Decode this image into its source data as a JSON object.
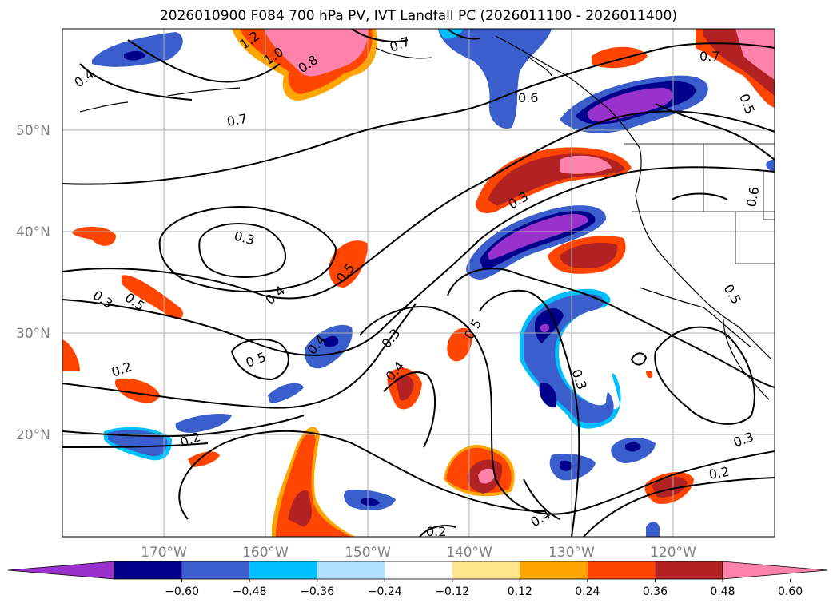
{
  "title": "2026010900 F084 700 hPa PV, IVT Landfall PC (2026011100 - 2026011400)",
  "lat_labels": [
    "50°N",
    "40°N",
    "30°N",
    "20°N"
  ],
  "lon_labels": [
    "170°W",
    "160°W",
    "150°W",
    "140°W",
    "130°W",
    "120°W"
  ],
  "colorbar": {
    "tick_labels": [
      "−0.60",
      "−0.48",
      "−0.36",
      "−0.24",
      "−0.12",
      "0.12",
      "0.24",
      "0.36",
      "0.48",
      "0.60"
    ],
    "colors": [
      "#9932cc",
      "#00008b",
      "#3a5fcd",
      "#00bfff",
      "#b0e2ff",
      "#ffffff",
      "#ffe68c",
      "#ffa500",
      "#ff4500",
      "#b22222",
      "#ff82ab"
    ]
  },
  "contour_labels": [
    {
      "text": "1.2"
    },
    {
      "text": "1.0"
    },
    {
      "text": "0.8"
    },
    {
      "text": "0.7"
    },
    {
      "text": "0.4"
    },
    {
      "text": "0.6"
    },
    {
      "text": "0.7"
    },
    {
      "text": "0.7"
    },
    {
      "text": "0.5"
    },
    {
      "text": "0.3"
    },
    {
      "text": "0.6"
    },
    {
      "text": "0.3"
    },
    {
      "text": "0.5"
    },
    {
      "text": "0.4"
    },
    {
      "text": "0.3"
    },
    {
      "text": "0.5"
    },
    {
      "text": "0.5"
    },
    {
      "text": "0.4"
    },
    {
      "text": "0.3"
    },
    {
      "text": "0.5"
    },
    {
      "text": "0.2"
    },
    {
      "text": "0.4"
    },
    {
      "text": "0.3"
    },
    {
      "text": "0.2"
    },
    {
      "text": "0.3"
    },
    {
      "text": "0.2"
    },
    {
      "text": "0.4"
    },
    {
      "text": "0.2"
    },
    {
      "text": "0.5"
    }
  ]
}
